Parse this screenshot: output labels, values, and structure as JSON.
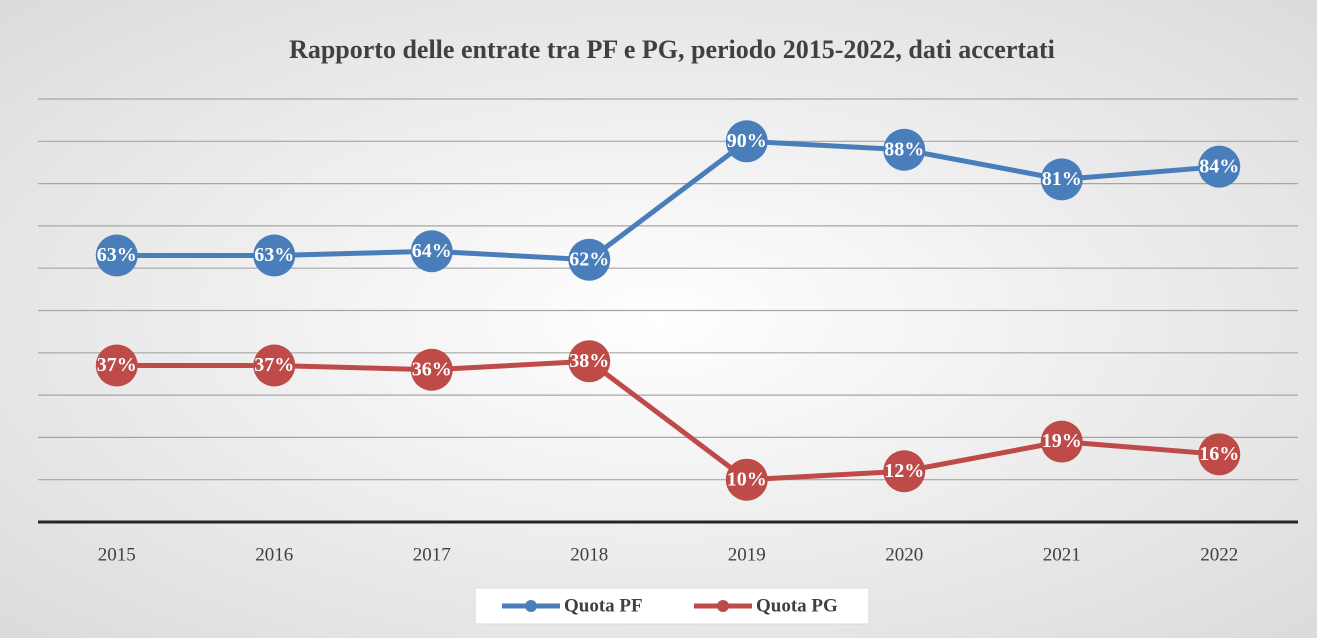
{
  "chart_data": {
    "type": "line",
    "title": "Rapporto delle entrate tra PF e PG, periodo 2015-2022, dati accertati",
    "categories": [
      "2015",
      "2016",
      "2017",
      "2018",
      "2019",
      "2020",
      "2021",
      "2022"
    ],
    "series": [
      {
        "name": "Quota PF",
        "color": "#4a7ebb",
        "values": [
          63,
          63,
          64,
          62,
          90,
          88,
          81,
          84
        ],
        "value_labels": [
          "63%",
          "63%",
          "64%",
          "62%",
          "90%",
          "88%",
          "81%",
          "84%"
        ]
      },
      {
        "name": "Quota PG",
        "color": "#be4b48",
        "values": [
          37,
          37,
          36,
          38,
          10,
          12,
          19,
          16
        ],
        "value_labels": [
          "37%",
          "37%",
          "36%",
          "38%",
          "10%",
          "12%",
          "19%",
          "16%"
        ]
      }
    ],
    "ylim": [
      0,
      100
    ],
    "yticks": [
      0,
      10,
      20,
      30,
      40,
      50,
      60,
      70,
      80,
      90,
      100
    ],
    "grid": true,
    "legend": "bottom"
  }
}
